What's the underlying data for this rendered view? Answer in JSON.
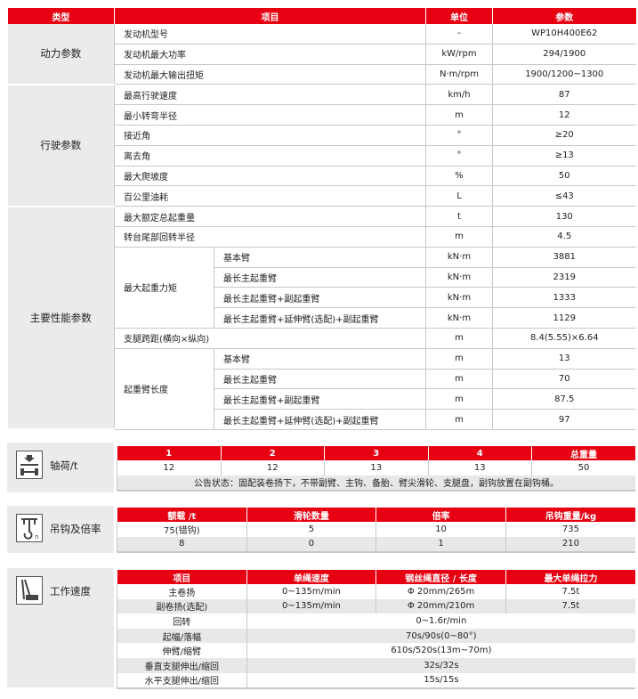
{
  "main": {
    "headers": [
      "类型",
      "项目",
      "单位",
      "参数"
    ],
    "groups": [
      {
        "category": "动力参数",
        "rows": [
          {
            "item": "发动机型号",
            "unit": "-",
            "value": "WP10H400E62"
          },
          {
            "item": "发动机最大功率",
            "unit": "kW/rpm",
            "value": "294/1900"
          },
          {
            "item": "发动机最大输出扭矩",
            "unit": "N·m/rpm",
            "value": "1900/1200~1300"
          }
        ]
      },
      {
        "category": "行驶参数",
        "rows": [
          {
            "item": "最高行驶速度",
            "unit": "km/h",
            "value": "87"
          },
          {
            "item": "最小转弯半径",
            "unit": "m",
            "value": "12"
          },
          {
            "item": "接近角",
            "unit": "°",
            "value": "≥20"
          },
          {
            "item": "离去角",
            "unit": "°",
            "value": "≥13"
          },
          {
            "item": "最大爬坡度",
            "unit": "%",
            "value": "50"
          },
          {
            "item": "百公里油耗",
            "unit": "L",
            "value": "≤43"
          }
        ]
      },
      {
        "category": "主要性能参数",
        "rows": [
          {
            "item": "最大额定总起重量",
            "unit": "t",
            "value": "130"
          },
          {
            "item": "转台尾部回转半径",
            "unit": "m",
            "value": "4.5"
          }
        ],
        "moment": {
          "label": "最大起重力矩",
          "rows": [
            {
              "item": "基本臂",
              "unit": "kN·m",
              "value": "3881"
            },
            {
              "item": "最长主起重臂",
              "unit": "kN·m",
              "value": "2319"
            },
            {
              "item": "最长主起重臂+副起重臂",
              "unit": "kN·m",
              "value": "1333"
            },
            {
              "item": "最长主起重臂+延伸臂(选配)+副起重臂",
              "unit": "kN·m",
              "value": "1129"
            }
          ]
        },
        "outrigger": {
          "item": "支腿跨距(横向×纵向)",
          "unit": "m",
          "value": "8.4(5.55)×6.64"
        },
        "boom": {
          "label": "起重臂长度",
          "rows": [
            {
              "item": "基本臂",
              "unit": "m",
              "value": "13"
            },
            {
              "item": "最长主起重臂",
              "unit": "m",
              "value": "70"
            },
            {
              "item": "最长主起重臂+副起重臂",
              "unit": "m",
              "value": "87.5"
            },
            {
              "item": "最长主起重臂+延伸臂(选配)+副起重臂",
              "unit": "m",
              "value": "97"
            }
          ]
        }
      }
    ]
  },
  "axle": {
    "label": "轴荷/t",
    "icon": "axle-load-icon",
    "headers": [
      "1",
      "2",
      "3",
      "4",
      "总重量"
    ],
    "values": [
      "12",
      "12",
      "13",
      "13",
      "50"
    ],
    "note": "公告状态：固配装卷扬下，不带副臂、主钩、备胎、臂尖滑轮、支腿盘，副钩放置在副钩桶。"
  },
  "hook": {
    "label": "吊钩及倍率",
    "icon": "hook-icon",
    "headers": [
      "额载 /t",
      "滑轮数量",
      "倍率",
      "吊钩重量/kg"
    ],
    "rows": [
      [
        "75(错钩)",
        "5",
        "10",
        "735"
      ],
      [
        "8",
        "0",
        "1",
        "210"
      ]
    ]
  },
  "speed": {
    "label": "工作速度",
    "icon": "crane-icon",
    "headers": [
      "项目",
      "单绳速度",
      "钢丝绳直径 / 长度",
      "最大单绳拉力"
    ],
    "rows4": [
      [
        "主卷扬",
        "0~135m/min",
        "Φ 20mm/265m",
        "7.5t"
      ],
      [
        "副卷扬(选配)",
        "0~135m/min",
        "Φ 20mm/210m",
        "7.5t"
      ]
    ],
    "rows2": [
      [
        "回转",
        "0~1.6r/min"
      ],
      [
        "起幅/落幅",
        "70s/90s(0~80°)"
      ],
      [
        "伸臂/缩臂",
        "610s/520s(13m~70m)"
      ],
      [
        "垂直支腿伸出/缩回",
        "32s/32s"
      ],
      [
        "水平支腿伸出/缩回",
        "15s/15s"
      ]
    ]
  },
  "colors": {
    "accent": "#e60012",
    "shade": "#ebebeb"
  }
}
